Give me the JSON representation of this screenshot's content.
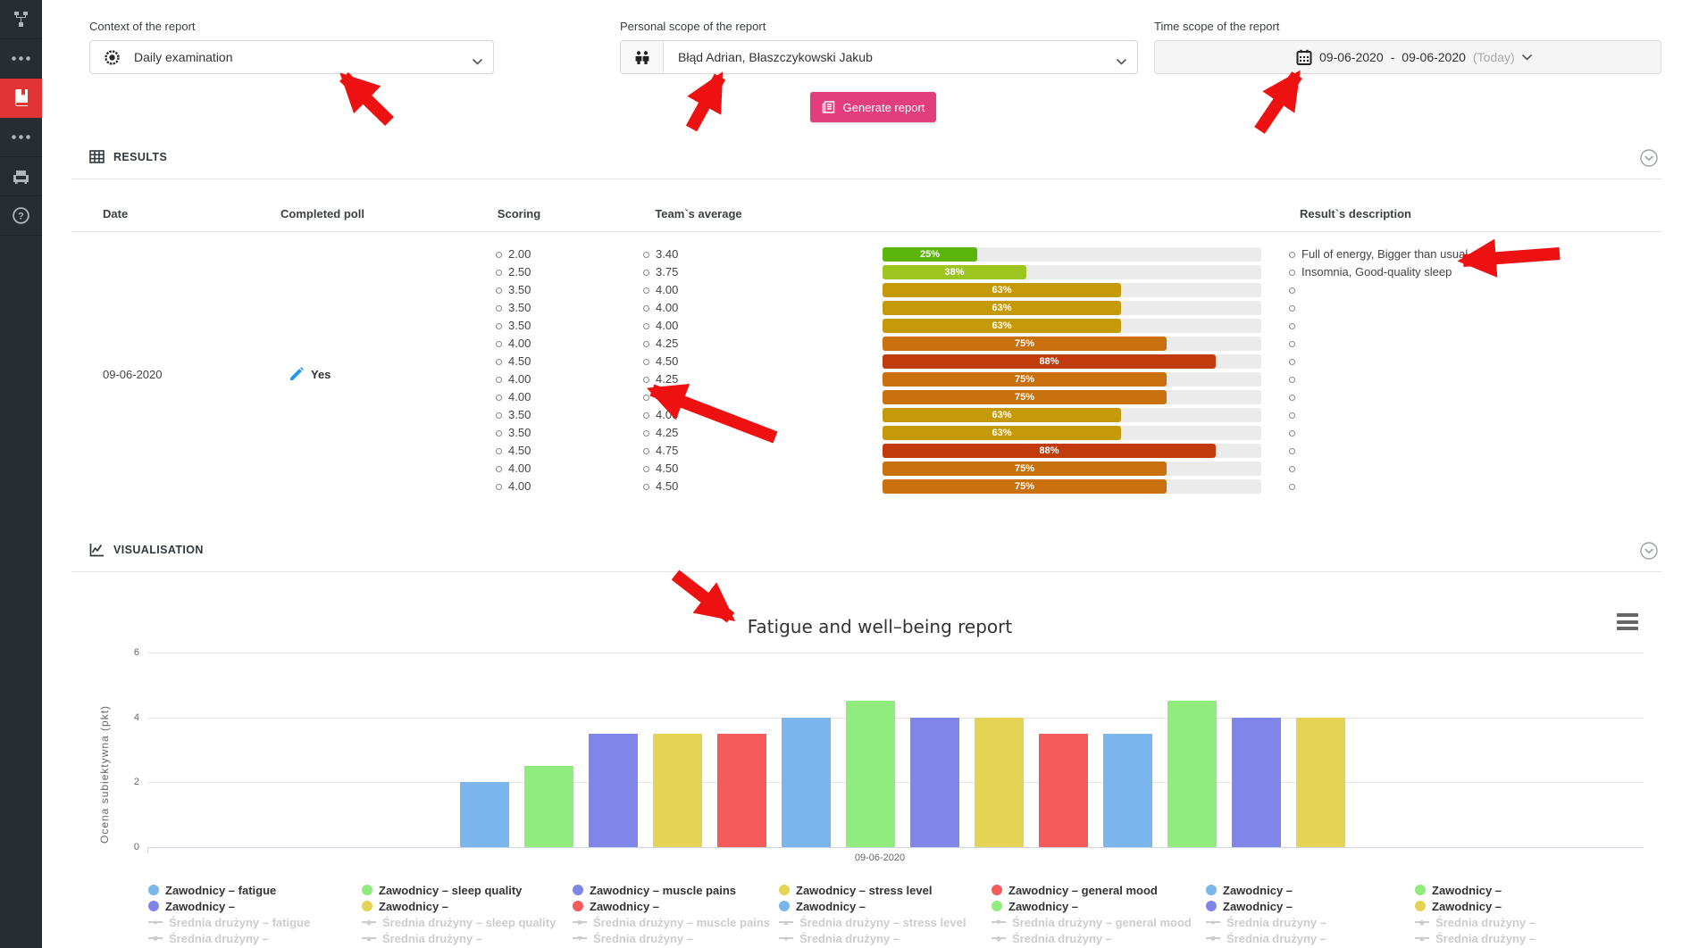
{
  "sidebar": {
    "items": [
      {
        "icon": "org-chart-icon",
        "active": false
      },
      {
        "icon": "ellipsis-icon",
        "active": false
      },
      {
        "icon": "book-icon",
        "active": true
      },
      {
        "icon": "ellipsis-icon",
        "active": false
      },
      {
        "icon": "armchair-icon",
        "active": false
      },
      {
        "icon": "help-icon",
        "active": false
      }
    ],
    "active_color": "#e23434"
  },
  "controls": {
    "context": {
      "label": "Context of the report",
      "value": "Daily examination"
    },
    "personal": {
      "label": "Personal scope of the report",
      "value": "Błąd Adrian, Błaszczykowski Jakub"
    },
    "time": {
      "label": "Time scope of the report",
      "start": "09-06-2020",
      "separator": "-",
      "end": "09-06-2020",
      "suffix": "(Today)"
    },
    "generate": {
      "label": "Generate report",
      "color": "#e23d7d"
    }
  },
  "results": {
    "section_title": "RESULTS",
    "headers": {
      "date": "Date",
      "completed": "Completed poll",
      "scoring": "Scoring",
      "team_avg": "Team`s average",
      "description": "Result`s description"
    },
    "date": "09-06-2020",
    "completed_value": "Yes",
    "rows": [
      {
        "scoring": "2.00",
        "team_avg": "3.40",
        "percent": 25,
        "bar_color": "#5cb50d",
        "description": "Full of energy, Bigger than usual"
      },
      {
        "scoring": "2.50",
        "team_avg": "3.75",
        "percent": 38,
        "bar_color": "#9dc41f",
        "description": "Insomnia, Good-quality sleep"
      },
      {
        "scoring": "3.50",
        "team_avg": "4.00",
        "percent": 63,
        "bar_color": "#c49a0b",
        "description": ""
      },
      {
        "scoring": "3.50",
        "team_avg": "4.00",
        "percent": 63,
        "bar_color": "#c49a0b",
        "description": ""
      },
      {
        "scoring": "3.50",
        "team_avg": "4.00",
        "percent": 63,
        "bar_color": "#c49a0b",
        "description": ""
      },
      {
        "scoring": "4.00",
        "team_avg": "4.25",
        "percent": 75,
        "bar_color": "#c9700f",
        "description": ""
      },
      {
        "scoring": "4.50",
        "team_avg": "4.50",
        "percent": 88,
        "bar_color": "#c23b0c",
        "description": ""
      },
      {
        "scoring": "4.00",
        "team_avg": "4.25",
        "percent": 75,
        "bar_color": "#c9700f",
        "description": ""
      },
      {
        "scoring": "4.00",
        "team_avg": "4.50",
        "percent": 75,
        "bar_color": "#c9700f",
        "description": ""
      },
      {
        "scoring": "3.50",
        "team_avg": "4.00",
        "percent": 63,
        "bar_color": "#c49a0b",
        "description": ""
      },
      {
        "scoring": "3.50",
        "team_avg": "4.25",
        "percent": 63,
        "bar_color": "#c49a0b",
        "description": ""
      },
      {
        "scoring": "4.50",
        "team_avg": "4.75",
        "percent": 88,
        "bar_color": "#c23b0c",
        "description": ""
      },
      {
        "scoring": "4.00",
        "team_avg": "4.50",
        "percent": 75,
        "bar_color": "#c9700f",
        "description": ""
      },
      {
        "scoring": "4.00",
        "team_avg": "4.50",
        "percent": 75,
        "bar_color": "#c9700f",
        "description": ""
      }
    ]
  },
  "visualisation": {
    "section_title": "VISUALISATION"
  },
  "chart_data": {
    "type": "bar",
    "title": "Fatigue and well–being report",
    "ylabel": "Ocena subiektywna (pkt)",
    "xlabel": "",
    "categories": [
      "09-06-2020"
    ],
    "ylim": [
      0,
      6
    ],
    "yticks": [
      0,
      2,
      4,
      6
    ],
    "grid": true,
    "legend_position": "bottom",
    "bars": [
      {
        "value": 2.0,
        "color": "#7cb5ec"
      },
      {
        "value": 2.5,
        "color": "#90ed7d"
      },
      {
        "value": 3.5,
        "color": "#8085e9"
      },
      {
        "value": 3.5,
        "color": "#e4d354"
      },
      {
        "value": 3.5,
        "color": "#f45b5b"
      },
      {
        "value": 4.0,
        "color": "#7cb5ec"
      },
      {
        "value": 4.5,
        "color": "#90ed7d"
      },
      {
        "value": 4.0,
        "color": "#8085e9"
      },
      {
        "value": 4.0,
        "color": "#e4d354"
      },
      {
        "value": 3.5,
        "color": "#f45b5b"
      },
      {
        "value": 3.5,
        "color": "#7cb5ec"
      },
      {
        "value": 4.5,
        "color": "#90ed7d"
      },
      {
        "value": 4.0,
        "color": "#8085e9"
      },
      {
        "value": 4.0,
        "color": "#e4d354"
      }
    ],
    "legend_columns": [
      [
        {
          "type": "player",
          "color": "#7cb5ec",
          "label": "Zawodnicy – fatigue"
        },
        {
          "type": "player",
          "color": "#8085e9",
          "label": "Zawodnicy –"
        },
        {
          "type": "average",
          "shape": "●",
          "label": "Średnia drużyny – fatigue"
        },
        {
          "type": "average",
          "shape": "■",
          "label": "Średnia drużyny –"
        }
      ],
      [
        {
          "type": "player",
          "color": "#90ed7d",
          "label": "Zawodnicy – sleep quality"
        },
        {
          "type": "player",
          "color": "#e4d354",
          "label": "Zawodnicy –"
        },
        {
          "type": "average",
          "shape": "◆",
          "label": "Średnia drużyny – sleep quality"
        },
        {
          "type": "average",
          "shape": "▲",
          "label": "Średnia drużyny –"
        }
      ],
      [
        {
          "type": "player",
          "color": "#8085e9",
          "label": "Zawodnicy – muscle pains"
        },
        {
          "type": "player",
          "color": "#f45b5b",
          "label": "Zawodnicy –"
        },
        {
          "type": "average",
          "shape": "■",
          "label": "Średnia drużyny – muscle pains"
        },
        {
          "type": "average",
          "shape": "▼",
          "label": "Średnia drużyny –"
        }
      ],
      [
        {
          "type": "player",
          "color": "#e4d354",
          "label": "Zawodnicy – stress level"
        },
        {
          "type": "player",
          "color": "#7cb5ec",
          "label": "Zawodnicy –"
        },
        {
          "type": "average",
          "shape": "▲",
          "label": "Średnia drużyny – stress level"
        },
        {
          "type": "average",
          "shape": "●",
          "label": "Średnia drużyny –"
        }
      ],
      [
        {
          "type": "player",
          "color": "#f45b5b",
          "label": "Zawodnicy – general mood"
        },
        {
          "type": "player",
          "color": "#90ed7d",
          "label": "Zawodnicy –"
        },
        {
          "type": "average",
          "shape": "▼",
          "label": "Średnia drużyny – general mood"
        },
        {
          "type": "average",
          "shape": "◆",
          "label": "Średnia drużyny –"
        }
      ],
      [
        {
          "type": "player",
          "color": "#7cb5ec",
          "label": "Zawodnicy –"
        },
        {
          "type": "player",
          "color": "#8085e9",
          "label": "Zawodnicy –"
        },
        {
          "type": "average",
          "shape": "●",
          "label": "Średnia drużyny –"
        },
        {
          "type": "average",
          "shape": "■",
          "label": "Średnia drużyny –"
        }
      ],
      [
        {
          "type": "player",
          "color": "#90ed7d",
          "label": "Zawodnicy –"
        },
        {
          "type": "player",
          "color": "#e4d354",
          "label": "Zawodnicy –"
        },
        {
          "type": "average",
          "shape": "◆",
          "label": "Średnia drużyny –"
        },
        {
          "type": "average",
          "shape": "▲",
          "label": "Średnia drużyny –"
        }
      ]
    ]
  }
}
